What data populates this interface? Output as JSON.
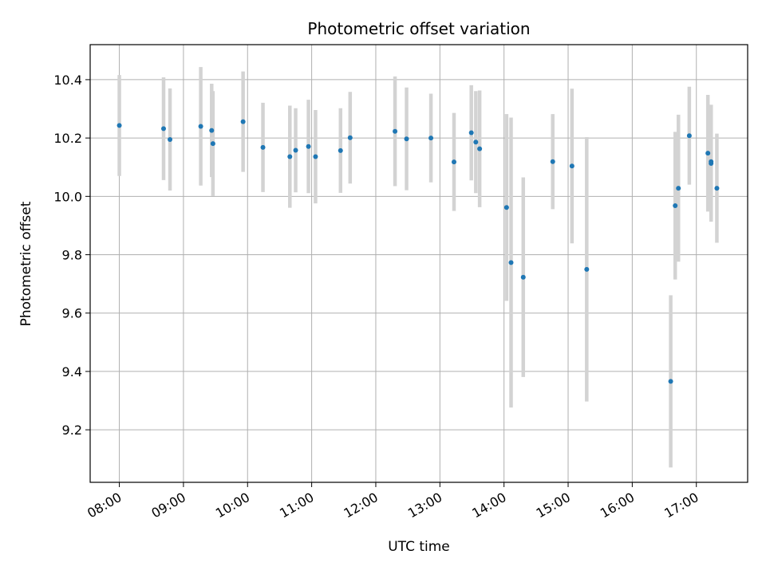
{
  "chart_data": {
    "type": "scatter",
    "title": "Photometric offset variation",
    "xlabel": "UTC time",
    "ylabel": "Photometric offset",
    "x_unit": "hours UTC",
    "xlim": [
      7.545,
      17.8
    ],
    "ylim": [
      9.02,
      10.52
    ],
    "x_ticks": [
      {
        "value": 8,
        "label": "08:00"
      },
      {
        "value": 9,
        "label": "09:00"
      },
      {
        "value": 10,
        "label": "10:00"
      },
      {
        "value": 11,
        "label": "11:00"
      },
      {
        "value": 12,
        "label": "12:00"
      },
      {
        "value": 13,
        "label": "13:00"
      },
      {
        "value": 14,
        "label": "14:00"
      },
      {
        "value": 15,
        "label": "15:00"
      },
      {
        "value": 16,
        "label": "16:00"
      },
      {
        "value": 17,
        "label": "17:00"
      }
    ],
    "y_ticks": [
      {
        "value": 9.2,
        "label": "9.2"
      },
      {
        "value": 9.4,
        "label": "9.4"
      },
      {
        "value": 9.6,
        "label": "9.6"
      },
      {
        "value": 9.8,
        "label": "9.8"
      },
      {
        "value": 10.0,
        "label": "10.0"
      },
      {
        "value": 10.2,
        "label": "10.2"
      },
      {
        "value": 10.4,
        "label": "10.4"
      }
    ],
    "grid": true,
    "point_color": "#1f77b4",
    "errorbar_color": "#d3d3d3",
    "points": [
      {
        "x": 8.0,
        "y": 10.243,
        "err": 0.173
      },
      {
        "x": 8.69,
        "y": 10.232,
        "err": 0.176
      },
      {
        "x": 8.79,
        "y": 10.195,
        "err": 0.175
      },
      {
        "x": 9.27,
        "y": 10.24,
        "err": 0.203
      },
      {
        "x": 9.44,
        "y": 10.226,
        "err": 0.16
      },
      {
        "x": 9.46,
        "y": 10.181,
        "err": 0.18
      },
      {
        "x": 9.93,
        "y": 10.256,
        "err": 0.172
      },
      {
        "x": 10.24,
        "y": 10.168,
        "err": 0.153
      },
      {
        "x": 10.66,
        "y": 10.136,
        "err": 0.175
      },
      {
        "x": 10.75,
        "y": 10.158,
        "err": 0.144
      },
      {
        "x": 10.95,
        "y": 10.171,
        "err": 0.16
      },
      {
        "x": 11.06,
        "y": 10.136,
        "err": 0.16
      },
      {
        "x": 11.45,
        "y": 10.157,
        "err": 0.145
      },
      {
        "x": 11.6,
        "y": 10.201,
        "err": 0.157
      },
      {
        "x": 12.3,
        "y": 10.223,
        "err": 0.188
      },
      {
        "x": 12.48,
        "y": 10.197,
        "err": 0.176
      },
      {
        "x": 12.86,
        "y": 10.2,
        "err": 0.152
      },
      {
        "x": 13.22,
        "y": 10.118,
        "err": 0.168
      },
      {
        "x": 13.49,
        "y": 10.218,
        "err": 0.163
      },
      {
        "x": 13.56,
        "y": 10.186,
        "err": 0.175
      },
      {
        "x": 13.62,
        "y": 10.163,
        "err": 0.2
      },
      {
        "x": 14.04,
        "y": 9.962,
        "err": 0.32
      },
      {
        "x": 14.11,
        "y": 9.773,
        "err": 0.497
      },
      {
        "x": 14.3,
        "y": 9.723,
        "err": 0.342
      },
      {
        "x": 14.76,
        "y": 10.119,
        "err": 0.163
      },
      {
        "x": 15.06,
        "y": 10.104,
        "err": 0.265
      },
      {
        "x": 15.29,
        "y": 9.75,
        "err": 0.453
      },
      {
        "x": 16.6,
        "y": 9.366,
        "err": 0.295
      },
      {
        "x": 16.67,
        "y": 9.968,
        "err": 0.253
      },
      {
        "x": 16.72,
        "y": 10.028,
        "err": 0.252
      },
      {
        "x": 16.89,
        "y": 10.208,
        "err": 0.168
      },
      {
        "x": 17.18,
        "y": 10.148,
        "err": 0.2
      },
      {
        "x": 17.23,
        "y": 10.113,
        "err": 0.2
      },
      {
        "x": 17.23,
        "y": 10.119,
        "err": 0.195
      },
      {
        "x": 17.32,
        "y": 10.028,
        "err": 0.187
      }
    ]
  }
}
